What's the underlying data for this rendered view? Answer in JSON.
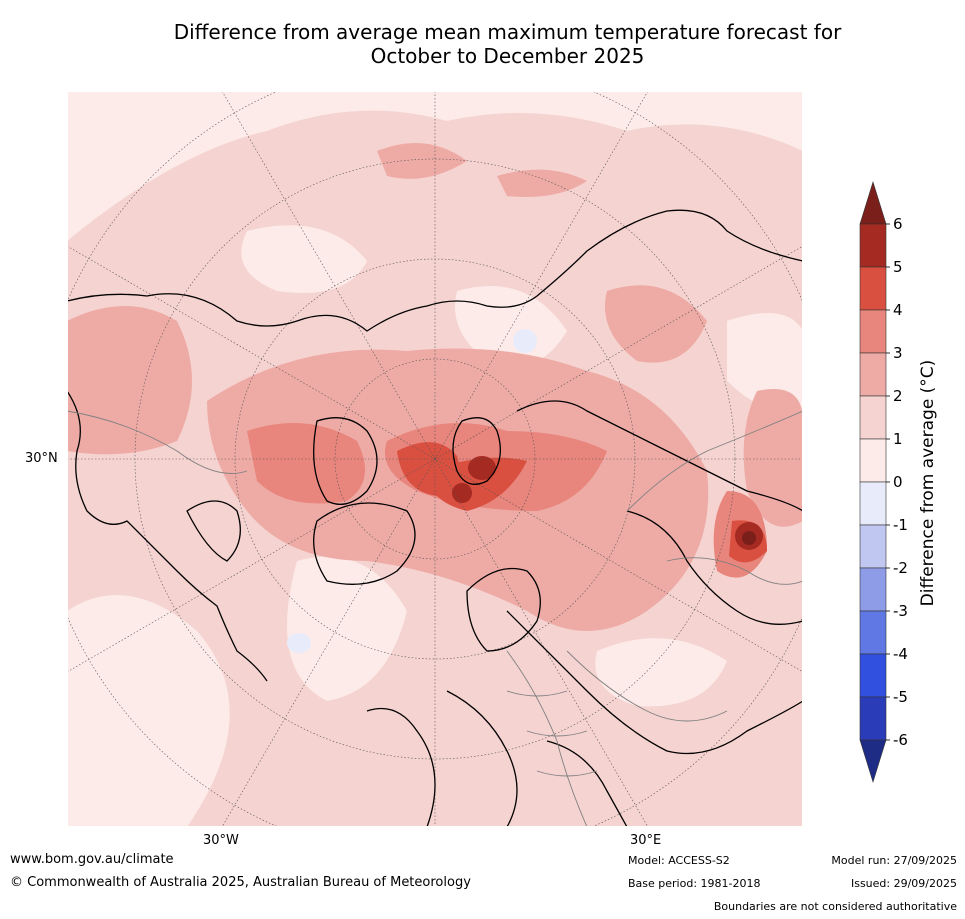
{
  "title": {
    "line1": "Difference from average mean maximum temperature forecast for",
    "line2": "October to December 2025"
  },
  "map": {
    "projection": "north-polar-stereographic",
    "lat_labels": [
      "30°N"
    ],
    "lon_labels": [
      "30°W",
      "30°E"
    ],
    "coastline_color": "#000000",
    "border_color": "#808080"
  },
  "colorbar": {
    "label": "Difference from average (°C)",
    "ticks": [
      "6",
      "5",
      "4",
      "3",
      "2",
      "1",
      "0",
      "-1",
      "-2",
      "-3",
      "-4",
      "-5",
      "-6"
    ],
    "bins": [
      {
        "range": "5 to 6",
        "color": "#a52a22"
      },
      {
        "range": "4 to 5",
        "color": "#d95040"
      },
      {
        "range": "3 to 4",
        "color": "#e8857c"
      },
      {
        "range": "2 to 3",
        "color": "#eeaba6"
      },
      {
        "range": "1 to 2",
        "color": "#f5d3d0"
      },
      {
        "range": "0 to 1",
        "color": "#fcebe9"
      },
      {
        "range": "-1 to 0",
        "color": "#e8ecfa"
      },
      {
        "range": "-2 to -1",
        "color": "#c0c7f0"
      },
      {
        "range": "-3 to -2",
        "color": "#8e9ce8"
      },
      {
        "range": "-4 to -3",
        "color": "#6078e3"
      },
      {
        "range": "-5 to -4",
        "color": "#3150e0"
      },
      {
        "range": "-6 to -5",
        "color": "#2b3cb8"
      }
    ],
    "over_color": "#7a1f1a",
    "under_color": "#1f2c85"
  },
  "footer": {
    "url": "www.bom.gov.au/climate",
    "copyright": "© Commonwealth of Australia 2025, Australian Bureau of Meteorology",
    "model": "Model: ACCESS-S2",
    "base_period": "Base period: 1981-2018",
    "model_run": "Model run: 27/09/2025",
    "issued": "Issued: 29/09/2025",
    "disclaimer": "Boundaries are not considered authoritative"
  }
}
